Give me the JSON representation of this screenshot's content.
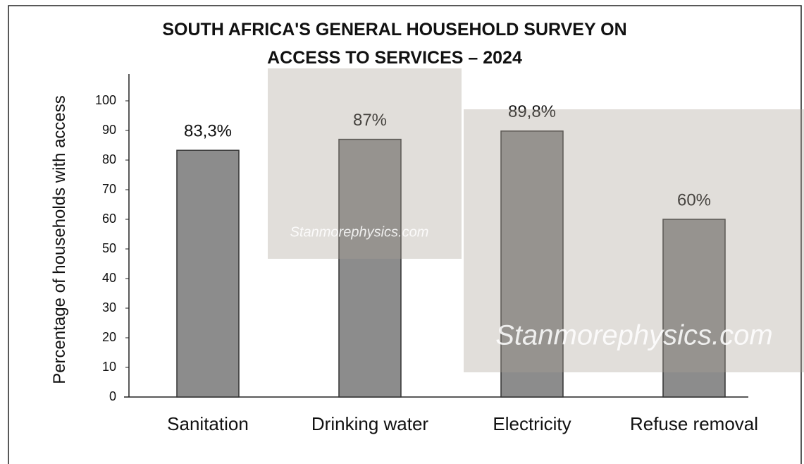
{
  "chart_data": {
    "type": "bar",
    "title": "SOUTH AFRICA'S GENERAL HOUSEHOLD SURVEY ON ACCESS TO SERVICES – 2024",
    "y_label": "Percentage of households with access",
    "categories": [
      "Sanitation",
      "Drinking water",
      "Electricity",
      "Refuse removal"
    ],
    "values": [
      83.3,
      87,
      89.8,
      60
    ],
    "value_labels": [
      "83,3%",
      "87%",
      "89,8%",
      "60%"
    ],
    "color": "#8c8c8c",
    "ylim": [
      0,
      100
    ],
    "yticks": [
      0,
      10,
      20,
      30,
      40,
      50,
      60,
      70,
      80,
      90,
      100
    ],
    "grid": false,
    "watermark": "Stanmorephysics.com"
  }
}
